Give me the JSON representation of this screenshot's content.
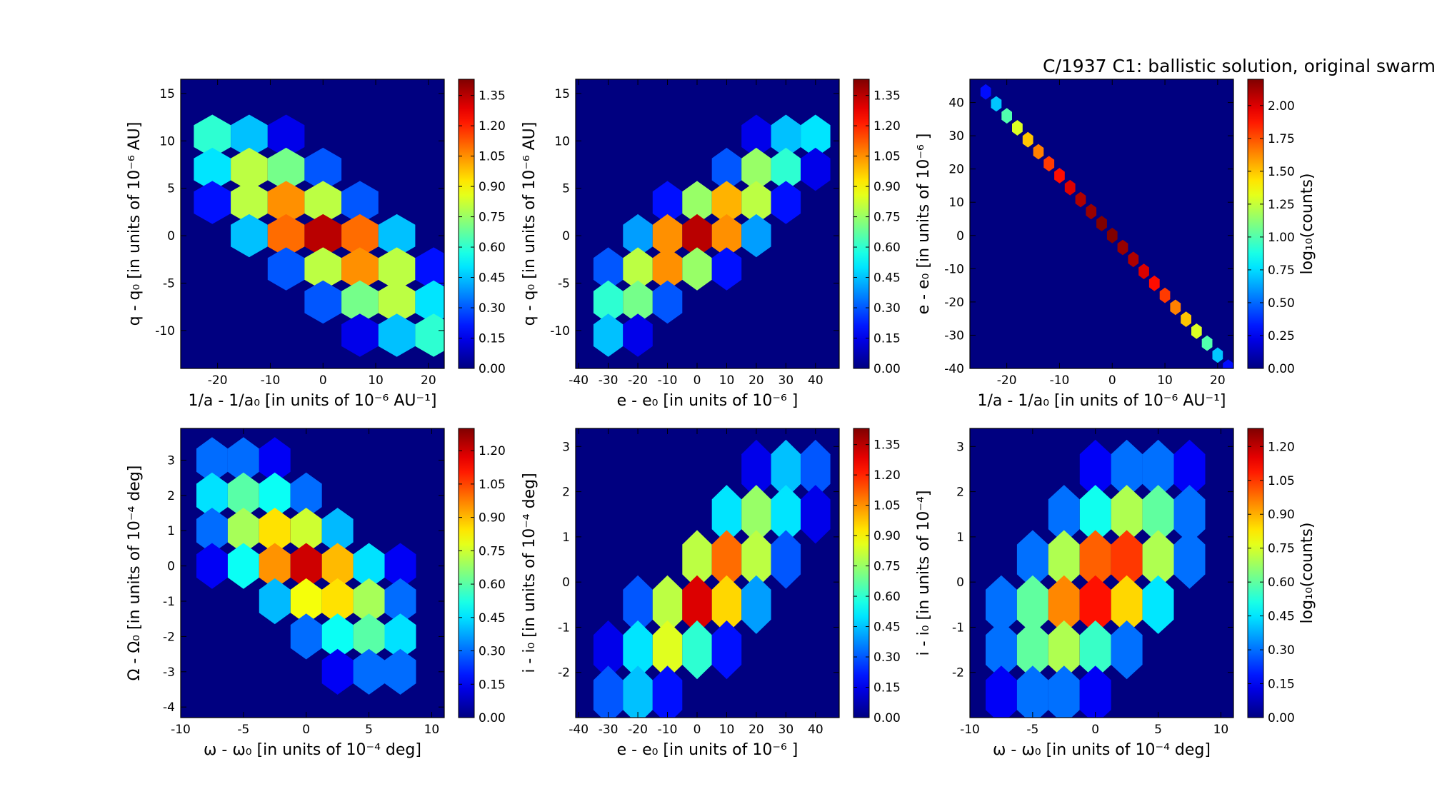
{
  "chart_data": [
    {
      "type": "hexbin",
      "colormap": "jet",
      "xlabel": "1/a - 1/a₀ [in units of 10⁻⁶ AU⁻¹]",
      "ylabel": "q - q₀ [in units of 10⁻⁶ AU]",
      "xlim": [
        -27,
        23
      ],
      "ylim": [
        -14,
        16.5
      ],
      "xticks": [
        -20,
        -10,
        0,
        10,
        20
      ],
      "yticks": [
        -10,
        -5,
        0,
        5,
        10,
        15
      ],
      "x": [
        -21,
        -14,
        -7,
        0,
        7,
        14,
        21
      ],
      "y": [
        10.5,
        7,
        3.5,
        0,
        -3.5,
        -7,
        -10.5
      ],
      "values": [
        [
          0.6,
          0.45,
          0.15,
          null,
          null,
          null,
          null
        ],
        [
          0.5,
          0.8,
          0.7,
          0.3,
          null,
          null,
          null
        ],
        [
          0.2,
          0.8,
          1.05,
          0.8,
          0.3,
          null,
          null
        ],
        [
          null,
          0.45,
          1.1,
          1.35,
          1.1,
          0.45,
          null
        ],
        [
          null,
          null,
          0.3,
          0.8,
          1.05,
          0.8,
          0.2
        ],
        [
          null,
          null,
          null,
          0.3,
          0.7,
          0.8,
          0.5
        ],
        [
          null,
          null,
          null,
          null,
          0.15,
          0.45,
          0.6
        ]
      ],
      "clim": [
        0,
        1.43
      ],
      "cticks": [
        {
          "value": 0,
          "label": "0.00"
        },
        {
          "value": 0.15,
          "label": "0.15"
        },
        {
          "value": 0.3,
          "label": "0.30"
        },
        {
          "value": 0.45,
          "label": "0.45"
        },
        {
          "value": 0.6,
          "label": "0.60"
        },
        {
          "value": 0.75,
          "label": "0.75"
        },
        {
          "value": 0.9,
          "label": "0.90"
        },
        {
          "value": 1.05,
          "label": "1.05"
        },
        {
          "value": 1.2,
          "label": "1.20"
        },
        {
          "value": 1.35,
          "label": "1.35"
        }
      ]
    },
    {
      "type": "hexbin",
      "colormap": "jet",
      "xlabel": "e - e₀ [in units of 10⁻⁶ ]",
      "ylabel": "q - q₀ [in units of 10⁻⁶ AU]",
      "xlim": [
        -41,
        48
      ],
      "ylim": [
        -14,
        16.5
      ],
      "xticks": [
        -40,
        -30,
        -20,
        -10,
        0,
        10,
        20,
        30,
        40
      ],
      "yticks": [
        -10,
        -5,
        0,
        5,
        10,
        15
      ],
      "x": [
        -30,
        -20,
        -10,
        0,
        10,
        20,
        30,
        40
      ],
      "y": [
        10.5,
        7,
        3.5,
        0,
        -3.5,
        -7,
        -10.5
      ],
      "values": [
        [
          null,
          null,
          null,
          null,
          null,
          0.15,
          0.45,
          0.5
        ],
        [
          null,
          null,
          null,
          null,
          0.3,
          0.75,
          0.6,
          0.15
        ],
        [
          null,
          null,
          0.2,
          0.75,
          1.0,
          0.8,
          0.2,
          null
        ],
        [
          null,
          0.4,
          1.05,
          1.35,
          1.05,
          0.4,
          null,
          null
        ],
        [
          0.3,
          0.8,
          1.05,
          0.75,
          0.2,
          null,
          null,
          null
        ],
        [
          0.6,
          0.7,
          0.3,
          null,
          null,
          null,
          null,
          null
        ],
        [
          0.45,
          0.15,
          null,
          null,
          null,
          null,
          null,
          null
        ]
      ],
      "clim": [
        0,
        1.43
      ],
      "cticks": [
        {
          "value": 0,
          "label": "0.00"
        },
        {
          "value": 0.15,
          "label": "0.15"
        },
        {
          "value": 0.3,
          "label": "0.30"
        },
        {
          "value": 0.45,
          "label": "0.45"
        },
        {
          "value": 0.6,
          "label": "0.60"
        },
        {
          "value": 0.75,
          "label": "0.75"
        },
        {
          "value": 0.9,
          "label": "0.90"
        },
        {
          "value": 1.05,
          "label": "1.05"
        },
        {
          "value": 1.2,
          "label": "1.20"
        },
        {
          "value": 1.35,
          "label": "1.35"
        }
      ]
    },
    {
      "type": "hexbin",
      "colormap": "jet",
      "title": "C/1937 C1:  ballistic solution, original swarm",
      "xlabel": "1/a - 1/a₀ [in units of 10⁻⁶ AU⁻¹]",
      "ylabel": "e - e₀ [in units of 10⁻⁶ ]",
      "xlim": [
        -27,
        23
      ],
      "ylim": [
        -40,
        47
      ],
      "xticks": [
        -20,
        -10,
        0,
        10,
        20
      ],
      "yticks": [
        -40,
        -30,
        -20,
        -10,
        0,
        10,
        20,
        30,
        40
      ],
      "x": [
        -24,
        -22,
        -20,
        -18,
        -16,
        -14,
        -12,
        -10,
        -8,
        -6,
        -4,
        -2,
        0,
        2,
        4,
        6,
        8,
        10,
        12,
        14,
        16,
        18,
        20,
        22
      ],
      "y": [
        43.2,
        39.6,
        36,
        32.4,
        28.8,
        25.2,
        21.6,
        18,
        14.4,
        10.8,
        7.2,
        3.6,
        0,
        -3.6,
        -7.2,
        -10.8,
        -14.4,
        -18,
        -21.6,
        -25.2,
        -28.8,
        -32.4,
        -36,
        -39.6
      ],
      "values": [
        0.3,
        0.7,
        1.0,
        1.3,
        1.5,
        1.65,
        1.8,
        1.9,
        2.0,
        2.1,
        2.15,
        2.2,
        2.2,
        2.15,
        2.1,
        2.0,
        1.9,
        1.8,
        1.65,
        1.5,
        1.3,
        1.0,
        0.7,
        0.3
      ],
      "clim": [
        0,
        2.2
      ],
      "colorbar_label": "log₁₀(counts)",
      "cticks": [
        {
          "value": 0,
          "label": "0.00"
        },
        {
          "value": 0.25,
          "label": "0.25"
        },
        {
          "value": 0.5,
          "label": "0.50"
        },
        {
          "value": 0.75,
          "label": "0.75"
        },
        {
          "value": 1,
          "label": "1.00"
        },
        {
          "value": 1.25,
          "label": "1.25"
        },
        {
          "value": 1.5,
          "label": "1.50"
        },
        {
          "value": 1.75,
          "label": "1.75"
        },
        {
          "value": 2,
          "label": "2.00"
        }
      ]
    },
    {
      "type": "hexbin",
      "colormap": "jet",
      "xlabel": "ω - ω₀ [in units of 10⁻⁴ deg]",
      "ylabel": "Ω - Ω₀ [in units of 10⁻⁴ deg]",
      "xlim": [
        -10,
        11
      ],
      "ylim": [
        -4.3,
        3.9
      ],
      "xticks": [
        -10,
        -5,
        0,
        5,
        10
      ],
      "yticks": [
        -4,
        -3,
        -2,
        -1,
        0,
        1,
        2,
        3
      ],
      "x": [
        -7.5,
        -5,
        -2.5,
        0,
        2.5,
        5,
        7.5
      ],
      "y": [
        3,
        2,
        1,
        0,
        -1,
        -2,
        -3
      ],
      "values": [
        [
          0.3,
          0.3,
          0.15,
          null,
          null,
          null,
          null
        ],
        [
          0.45,
          0.6,
          0.5,
          0.3,
          null,
          null,
          null
        ],
        [
          0.3,
          0.7,
          0.85,
          0.75,
          0.4,
          null,
          null
        ],
        [
          0.15,
          0.5,
          0.95,
          1.2,
          0.9,
          0.45,
          0.15
        ],
        [
          null,
          null,
          0.4,
          0.8,
          0.85,
          0.7,
          0.3
        ],
        [
          null,
          null,
          null,
          0.3,
          0.5,
          0.6,
          0.45
        ],
        [
          null,
          null,
          null,
          null,
          0.15,
          0.3,
          0.3
        ]
      ],
      "clim": [
        0,
        1.3
      ],
      "cticks": [
        {
          "value": 0,
          "label": "0.00"
        },
        {
          "value": 0.15,
          "label": "0.15"
        },
        {
          "value": 0.3,
          "label": "0.30"
        },
        {
          "value": 0.45,
          "label": "0.45"
        },
        {
          "value": 0.6,
          "label": "0.60"
        },
        {
          "value": 0.75,
          "label": "0.75"
        },
        {
          "value": 0.9,
          "label": "0.90"
        },
        {
          "value": 1.05,
          "label": "1.05"
        },
        {
          "value": 1.2,
          "label": "1.20"
        }
      ]
    },
    {
      "type": "hexbin",
      "colormap": "jet",
      "xlabel": "e - e₀ [in units of 10⁻⁶ ]",
      "ylabel": "i - i₀ [in units of 10⁻⁴ deg]",
      "xlim": [
        -41,
        48
      ],
      "ylim": [
        -3,
        3.4
      ],
      "xticks": [
        -40,
        -30,
        -20,
        -10,
        0,
        10,
        20,
        30,
        40
      ],
      "yticks": [
        -2,
        -1,
        0,
        1,
        2,
        3
      ],
      "x": [
        -30,
        -20,
        -10,
        0,
        10,
        20,
        30,
        40
      ],
      "y": [
        2.5,
        1.5,
        0.5,
        -0.5,
        -1.5,
        -2.5
      ],
      "values": [
        [
          null,
          null,
          null,
          null,
          null,
          0.15,
          0.45,
          0.3
        ],
        [
          null,
          null,
          null,
          null,
          0.5,
          0.75,
          0.5,
          0.15
        ],
        [
          null,
          null,
          null,
          0.8,
          1.1,
          0.8,
          0.3,
          null
        ],
        [
          null,
          0.3,
          0.8,
          1.3,
          0.95,
          0.4,
          null,
          null
        ],
        [
          0.15,
          0.5,
          0.85,
          0.6,
          0.2,
          null,
          null,
          null
        ],
        [
          0.3,
          0.45,
          0.2,
          null,
          null,
          null,
          null,
          null
        ]
      ],
      "clim": [
        0,
        1.43
      ],
      "cticks": [
        {
          "value": 0,
          "label": "0.00"
        },
        {
          "value": 0.15,
          "label": "0.15"
        },
        {
          "value": 0.3,
          "label": "0.30"
        },
        {
          "value": 0.45,
          "label": "0.45"
        },
        {
          "value": 0.6,
          "label": "0.60"
        },
        {
          "value": 0.75,
          "label": "0.75"
        },
        {
          "value": 0.9,
          "label": "0.90"
        },
        {
          "value": 1.05,
          "label": "1.05"
        },
        {
          "value": 1.2,
          "label": "1.20"
        },
        {
          "value": 1.35,
          "label": "1.35"
        }
      ]
    },
    {
      "type": "hexbin",
      "colormap": "jet",
      "xlabel": "ω - ω₀ [in units of 10⁻⁴ deg]",
      "ylabel": "i - i₀ [in units of 10⁻⁴]",
      "xlim": [
        -10,
        11
      ],
      "ylim": [
        -3,
        3.4
      ],
      "xticks": [
        -10,
        -5,
        0,
        5,
        10
      ],
      "yticks": [
        -2,
        -1,
        0,
        1,
        2,
        3
      ],
      "x": [
        -7.5,
        -5,
        -2.5,
        0,
        2.5,
        5,
        7.5
      ],
      "y": [
        2.5,
        1.5,
        0.5,
        -0.5,
        -1.5,
        -2.5
      ],
      "values": [
        [
          null,
          null,
          null,
          0.15,
          0.3,
          0.3,
          0.15
        ],
        [
          null,
          null,
          0.3,
          0.5,
          0.7,
          0.6,
          0.3
        ],
        [
          null,
          0.3,
          0.7,
          1.0,
          1.05,
          0.7,
          0.3
        ],
        [
          0.3,
          0.6,
          0.95,
          1.1,
          0.85,
          0.45,
          null
        ],
        [
          0.3,
          0.6,
          0.7,
          0.55,
          0.3,
          null,
          null
        ],
        [
          0.15,
          0.3,
          0.3,
          0.15,
          null,
          null,
          null
        ]
      ],
      "clim": [
        0,
        1.28
      ],
      "colorbar_label": "log₁₀(counts)",
      "cticks": [
        {
          "value": 0,
          "label": "0.00"
        },
        {
          "value": 0.15,
          "label": "0.15"
        },
        {
          "value": 0.3,
          "label": "0.30"
        },
        {
          "value": 0.45,
          "label": "0.45"
        },
        {
          "value": 0.6,
          "label": "0.60"
        },
        {
          "value": 0.75,
          "label": "0.75"
        },
        {
          "value": 0.9,
          "label": "0.90"
        },
        {
          "value": 1.05,
          "label": "1.05"
        },
        {
          "value": 1.2,
          "label": "1.20"
        }
      ]
    }
  ]
}
